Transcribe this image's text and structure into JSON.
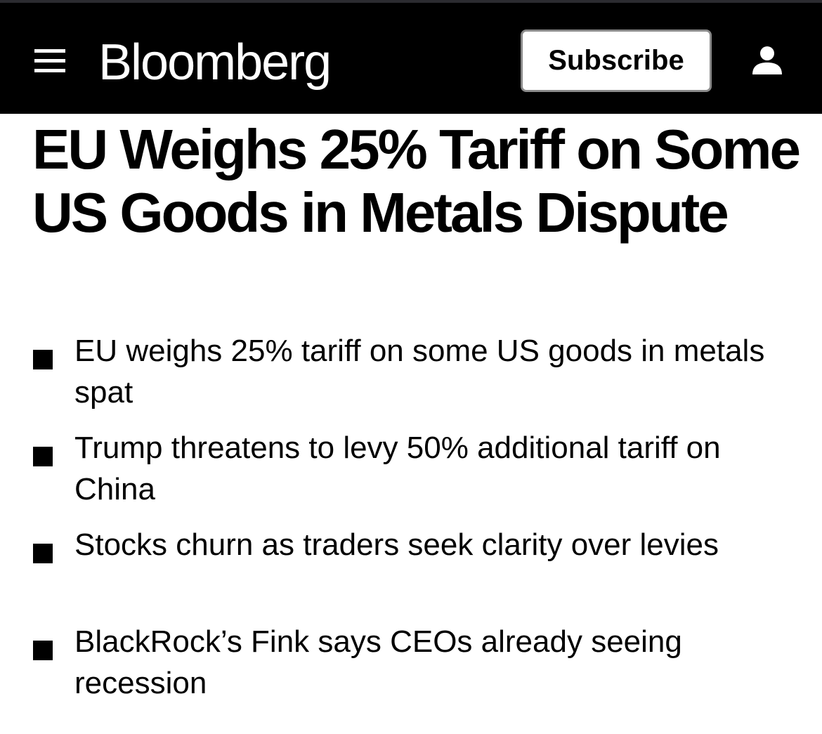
{
  "header": {
    "menu_icon": "hamburger-menu-icon",
    "logo": "Bloomberg",
    "subscribe_label": "Subscribe",
    "account_icon": "user-account-icon",
    "background_color": "#000000"
  },
  "article": {
    "headline": "EU Weighs 25% Tariff on Some US Goods in Metals Dispute",
    "bullets": [
      {
        "text": "EU weighs 25% tariff on some US goods in metals spat"
      },
      {
        "text": "Trump threatens to levy 50% additional tariff on China"
      },
      {
        "text": "Stocks churn as traders seek clarity over levies"
      },
      {
        "text": "BlackRock’s Fink says CEOs already seeing recession"
      }
    ]
  }
}
